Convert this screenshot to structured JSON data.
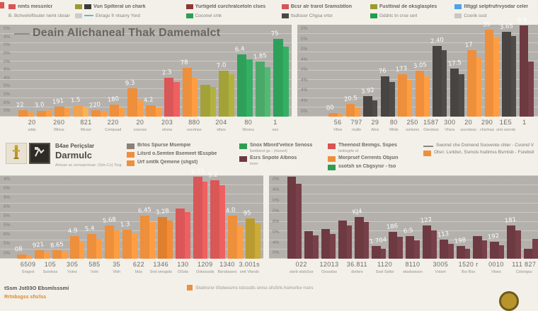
{
  "palette": {
    "orange": "#ee8f3c",
    "orange2": "#f2a24c",
    "orange3": "#e07f2e",
    "red": "#d95757",
    "olive": "#a3a238",
    "gold": "#b99b31",
    "green": "#2fa05a",
    "green2": "#4aa968",
    "dark": "#474441",
    "maroon": "#6d3a41",
    "plot_bg": "#b4b1ad",
    "blue": "#4da3e8",
    "teal": "#5bbcb8"
  },
  "top_legend": {
    "columns": [
      {
        "rows": [
          {
            "swatches": [
              "#d85353"
            ],
            "label": "nmts messnlcr"
          },
          {
            "swatches": [],
            "label": "B. Bchvelivfllsuter nemt cbsiar"
          }
        ]
      },
      {
        "rows": [
          {
            "swatches": [
              "#9a9b2f",
              "#3b3b39"
            ],
            "label": "Vun Spilteral un chark"
          },
          {
            "swatches": [
              "#c9cdc9",
              "line:#5bbcb8"
            ],
            "label": "Ekrago fr ntsarry Yord"
          }
        ]
      },
      {
        "rows": [
          {
            "swatches": [
              "#8a3a36"
            ],
            "label": "Yurtigeld curchralcetoln clses"
          },
          {
            "swatches": [
              "#2f9e52"
            ],
            "label": "Coconel smk"
          }
        ]
      },
      {
        "rows": [
          {
            "swatches": [
              "#d85353"
            ],
            "label": "Bcsr alr trarol Sramsbtlon"
          },
          {
            "swatches": [
              "#4a4744"
            ],
            "label": "Itsdlscer Chgsa vrtsr"
          }
        ]
      },
      {
        "rows": [
          {
            "swatches": [
              "#9a9b2f"
            ],
            "label": "Fusttinal de oksglasples"
          },
          {
            "swatches": [
              "#1f9e4b"
            ],
            "label": "Gddrtc tn crse cert"
          }
        ]
      },
      {
        "rows": [
          {
            "swatches": [
              "#4da3e8"
            ],
            "label": "Itltggl selpfrufrvyodar celer"
          },
          {
            "swatches": [
              "#c9c7c3"
            ],
            "label": "Coorik ssst"
          }
        ]
      }
    ]
  },
  "chart_data": [
    {
      "type": "bar",
      "name": "top-left",
      "title": "Deain Alichaneal Thak Damemalct",
      "ylabel": "%",
      "ylim": [
        0,
        100
      ],
      "grid": true,
      "yticks": [
        "0%",
        "4%",
        "0%",
        "0%",
        "0%",
        "8%",
        "4%",
        "5%",
        "0%",
        "8%",
        "0%"
      ],
      "bars": [
        [
          7,
          5,
          "orange",
          "22"
        ],
        [
          6,
          7,
          "orange",
          "3.0"
        ],
        [
          11,
          9,
          "orange",
          "191"
        ],
        [
          12,
          9,
          "orange2",
          "1.5"
        ],
        [
          7,
          6,
          "orange",
          "220"
        ],
        [
          13,
          10,
          "orange",
          "180"
        ],
        [
          31,
          18,
          "orange",
          "9.3"
        ],
        [
          12,
          10,
          "orange",
          "4.2"
        ],
        [
          42,
          38,
          "red",
          "2.3"
        ],
        [
          53,
          43,
          "orange",
          "78"
        ],
        [
          35,
          32,
          "olive",
          ""
        ],
        [
          50,
          46,
          "olive",
          "7.0"
        ],
        [
          68,
          62,
          "green",
          "6.4"
        ],
        [
          60,
          54,
          "green2",
          "1.85"
        ],
        [
          85,
          76,
          "green",
          "75"
        ]
      ],
      "xticks": [
        [
          "20",
          "wlds"
        ],
        [
          "260",
          "Wlsss"
        ],
        [
          "821",
          "Wcssr"
        ],
        [
          "220",
          "Csmpsad"
        ],
        [
          "20",
          "cnsrsss"
        ],
        [
          "203",
          "slrsns"
        ],
        [
          "880",
          "osrvlnso"
        ],
        [
          "204",
          "vltsrs"
        ],
        [
          "80",
          "Wvsns"
        ],
        [
          "1",
          "sos"
        ]
      ]
    },
    {
      "type": "bar",
      "name": "top-right",
      "title": "",
      "ylabel": "%",
      "ylim": [
        0,
        100
      ],
      "grid": true,
      "yticks": [
        "0%",
        "0%",
        "0%",
        "4%",
        "0%",
        "4%",
        "4%",
        "4%",
        "0%"
      ],
      "bars": [
        [
          4,
          3,
          "orange",
          "00"
        ],
        [
          14,
          10,
          "orange",
          "20.5"
        ],
        [
          22,
          18,
          "dark",
          "3.92"
        ],
        [
          44,
          38,
          "dark",
          "76"
        ],
        [
          46,
          40,
          "orange",
          "173"
        ],
        [
          50,
          44,
          "orange",
          "3.05"
        ],
        [
          77,
          72,
          "dark",
          "2.40"
        ],
        [
          52,
          46,
          "dark",
          "17.5"
        ],
        [
          72,
          64,
          "orange",
          "17"
        ],
        [
          95,
          86,
          "orange",
          "35"
        ],
        [
          92,
          88,
          "dark",
          "3.65"
        ],
        [
          99,
          60,
          "maroon",
          "9.6"
        ]
      ],
      "xticks": [
        [
          "56",
          "Vtlns"
        ],
        [
          "797",
          "risdln"
        ],
        [
          "29",
          "Atns"
        ],
        [
          "80",
          "Wtds"
        ],
        [
          "250",
          "osrlsms"
        ],
        [
          "1587",
          "Osrstxss"
        ],
        [
          "300",
          "Vhsrs"
        ],
        [
          "20",
          "ssvrstsss"
        ],
        [
          "290",
          "chsrtnss"
        ],
        [
          "1E5",
          "smt osnrsbs"
        ],
        [
          "1",
          ""
        ]
      ]
    },
    {
      "type": "bar",
      "name": "bottom-left",
      "title": "",
      "ylabel": "%",
      "ylim": [
        0,
        100
      ],
      "grid": true,
      "yticks": [
        "4%",
        "0%",
        "9%",
        "8%",
        "5%",
        "5%",
        "6%",
        "5%",
        "0%"
      ],
      "bars": [
        [
          5,
          4,
          "orange",
          "08"
        ],
        [
          10,
          8,
          "orange",
          "921"
        ],
        [
          10,
          9,
          "orange",
          "8.65"
        ],
        [
          27,
          20,
          "orange",
          "4.9"
        ],
        [
          30,
          24,
          "orange",
          "5.4"
        ],
        [
          40,
          34,
          "orange",
          "5.68"
        ],
        [
          35,
          30,
          "orange",
          "1.3"
        ],
        [
          52,
          44,
          "orange",
          "6.45"
        ],
        [
          50,
          46,
          "orange3",
          "3.28"
        ],
        [
          60,
          56,
          "red",
          ""
        ],
        [
          98,
          92,
          "red",
          "5.21"
        ],
        [
          94,
          88,
          "red",
          "5.2"
        ],
        [
          52,
          40,
          "orange",
          "4.0"
        ],
        [
          48,
          42,
          "gold",
          "95"
        ]
      ],
      "xticks": [
        [
          "6509",
          "Srsgrst"
        ],
        [
          "105",
          "Sssrtsss"
        ],
        [
          "305",
          "Vstns"
        ],
        [
          "585",
          "Vstn"
        ],
        [
          "35",
          "Vtsh"
        ],
        [
          "622",
          "Idss"
        ],
        [
          "1346",
          "Srst smsgsbs"
        ],
        [
          "130",
          "OSsts"
        ],
        [
          "1209",
          "Ostssssds"
        ],
        [
          "1340",
          "Bsrsbsssrs"
        ],
        [
          "3.001s",
          "smt Vtsrsls"
        ]
      ]
    },
    {
      "type": "bar",
      "name": "bottom-right",
      "title": "",
      "ylabel": "%",
      "ylim": [
        0,
        100
      ],
      "grid": true,
      "yticks": [
        "0%",
        "4%",
        "0%",
        "0%",
        "8%",
        "0%",
        "4%",
        "0%"
      ],
      "bars": [
        [
          98,
          90,
          "maroon",
          ""
        ],
        [
          33,
          28,
          "maroon",
          ""
        ],
        [
          36,
          30,
          "maroon",
          ""
        ],
        [
          46,
          40,
          "maroon",
          ""
        ],
        [
          50,
          44,
          "maroon",
          "KJ4"
        ],
        [
          15,
          12,
          "maroon",
          "1.704"
        ],
        [
          32,
          26,
          "maroon",
          "186"
        ],
        [
          27,
          22,
          "maroon",
          "6:5"
        ],
        [
          40,
          34,
          "maroon",
          "122"
        ],
        [
          23,
          18,
          "maroon",
          "113"
        ],
        [
          15,
          12,
          "maroon",
          "198"
        ],
        [
          27,
          22,
          "maroon",
          ""
        ],
        [
          20,
          16,
          "maroon",
          "192"
        ],
        [
          40,
          34,
          "maroon",
          "181"
        ],
        [
          12,
          24,
          "maroon",
          ""
        ]
      ],
      "xticks": [
        [
          "022",
          "stsrb stslsSss"
        ],
        [
          "12013",
          "Osssslss"
        ],
        [
          "36.811",
          "dsrtsrs"
        ],
        [
          "1120",
          "Ssst Sstlsr"
        ],
        [
          "8110",
          "stsslsssssn"
        ],
        [
          "3005",
          "Vstsm"
        ],
        [
          "1520 r",
          "Bsr Bss"
        ],
        [
          "0010",
          "Vtses"
        ],
        [
          "111 827",
          "Cstsngsu"
        ]
      ]
    }
  ],
  "brand": {
    "line1": "B4ae Periçslar",
    "line2": "Darmulc",
    "tagline": "Amsae ac serisqsntsae: (Sdn.Cz) Tsrgs"
  },
  "mid_legend": {
    "columns": [
      {
        "rows": [
          {
            "sw": "#8a8178",
            "label": "Brlos Spurse Msempie",
            "sub": ""
          },
          {
            "sw": "#ee8f3c",
            "label": "Lilsrd o.Semtee Bsemeet tEsspbe",
            "sub": ""
          },
          {
            "sw": "#ee8f3c",
            "label": "Urf smtlk Qemene (shgst)",
            "sub": ""
          }
        ]
      },
      {
        "rows": [
          {
            "sw": "#2f9e52",
            "label": "Snox Mbnrd'velice Senoss",
            "sub": "lisnibsrst gs - (rlsossl)"
          },
          {
            "sw": "#6d3a41",
            "label": "Esrs Snpote Albnos",
            "sub": "lsosr"
          }
        ]
      },
      {
        "rows": [
          {
            "sw": "#d85353",
            "label": "Theenost Beimgs. Sspes",
            "sub": "tssbsgrte st"
          },
          {
            "sw": "#ee8f3c",
            "label": "Morprsef Cerrents Objsin",
            "sub": ""
          },
          {
            "sw": "#2f9e52",
            "label": "ssotsh sn Cbgsyisr - tso",
            "sub": ""
          }
        ]
      },
      {
        "rows": [
          {
            "sw": "dash",
            "label": "Swomd che Domend Soovente chler - Cvomd Vlsrher Ymsrmss",
            "sub": ""
          },
          {
            "sw": "#ee8f3c",
            "label": "Otsn: Lsrtdsn, Ssmsls hsdimss Bsrntsb - Fsrebstlete Sorstsrer Otsgsmsb: Osursss",
            "sub": ""
          }
        ]
      }
    ]
  },
  "footer": {
    "source": "tSsm Jst03O Ebsmlsssmi",
    "note": "Slsdnsrsr tSstwssms tstssstls smss sfsSrls hsmsrlsv rssrs",
    "note_swatch": "#ee8f3c",
    "footnote": "Rrtnbsgss sfsrlss"
  }
}
